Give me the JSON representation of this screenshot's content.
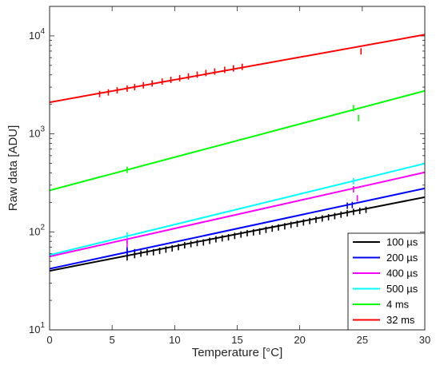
{
  "chart_data": {
    "type": "scatter",
    "title": "",
    "xlabel": "Temperature [°C]",
    "ylabel": "Raw data [ADU]",
    "xlim": [
      0,
      30
    ],
    "ylim": [
      10,
      20000
    ],
    "yscale": "log",
    "grid": false,
    "legend_position": "bottom-right",
    "x_ticks": [
      0,
      5,
      10,
      15,
      20,
      25,
      30
    ],
    "x_tick_labels": [
      "0",
      "5",
      "10",
      "15",
      "20",
      "25",
      "30"
    ],
    "y_ticks": [
      10,
      100,
      1000,
      10000
    ],
    "y_tick_labels": [
      {
        "base": "10",
        "exp": "1"
      },
      {
        "base": "10",
        "exp": "2"
      },
      {
        "base": "10",
        "exp": "3"
      },
      {
        "base": "10",
        "exp": "4"
      }
    ],
    "series": [
      {
        "name": "100 µs",
        "color": "#000000",
        "fit": {
          "x": [
            0,
            30
          ],
          "y": [
            40,
            226
          ]
        },
        "points": [
          [
            6.2,
            55
          ],
          [
            6.2,
            60
          ],
          [
            6.8,
            58
          ],
          [
            6.8,
            62
          ],
          [
            7.3,
            60
          ],
          [
            7.8,
            62
          ],
          [
            8.3,
            62
          ],
          [
            8.8,
            64
          ],
          [
            9.3,
            66
          ],
          [
            9.8,
            68
          ],
          [
            10.3,
            70
          ],
          [
            10.8,
            73
          ],
          [
            11.3,
            75
          ],
          [
            11.8,
            77
          ],
          [
            12.3,
            78
          ],
          [
            12.8,
            81
          ],
          [
            13.3,
            84
          ],
          [
            13.8,
            86
          ],
          [
            14.3,
            88
          ],
          [
            14.8,
            91
          ],
          [
            15.3,
            94
          ],
          [
            15.8,
            97
          ],
          [
            16.3,
            99
          ],
          [
            16.8,
            101
          ],
          [
            17.3,
            105
          ],
          [
            17.8,
            108
          ],
          [
            18.3,
            111
          ],
          [
            18.8,
            114
          ],
          [
            19.3,
            118
          ],
          [
            19.8,
            121
          ],
          [
            20.3,
            125
          ],
          [
            20.8,
            129
          ],
          [
            21.3,
            133
          ],
          [
            21.8,
            137
          ],
          [
            22.3,
            141
          ],
          [
            22.8,
            145
          ],
          [
            23.3,
            150
          ],
          [
            23.8,
            155
          ],
          [
            24.3,
            160
          ],
          [
            24.8,
            164
          ],
          [
            25.3,
            168
          ]
        ]
      },
      {
        "name": "200 µs",
        "color": "#0000ff",
        "fit": {
          "x": [
            0,
            30
          ],
          "y": [
            42,
            278
          ]
        },
        "points": [
          [
            6.2,
            62
          ],
          [
            6.2,
            65
          ],
          [
            23.8,
            185
          ],
          [
            24.2,
            188
          ]
        ]
      },
      {
        "name": "400 µs",
        "color": "#ff00ff",
        "fit": {
          "x": [
            0,
            30
          ],
          "y": [
            56,
            405
          ]
        },
        "points": [
          [
            6.2,
            82
          ],
          [
            6.2,
            75
          ],
          [
            24.3,
            272
          ],
          [
            24.6,
            220
          ]
        ]
      },
      {
        "name": "500 µs",
        "color": "#00ffff",
        "fit": {
          "x": [
            0,
            30
          ],
          "y": [
            58,
            498
          ]
        },
        "points": [
          [
            6.2,
            92
          ],
          [
            24.3,
            328
          ]
        ]
      },
      {
        "name": "4 ms",
        "color": "#00ff00",
        "fit": {
          "x": [
            0,
            30
          ],
          "y": [
            265,
            2750
          ]
        },
        "points": [
          [
            6.2,
            430
          ],
          [
            24.7,
            1450
          ],
          [
            24.3,
            1830
          ]
        ]
      },
      {
        "name": "32 ms",
        "color": "#ff0000",
        "fit": {
          "x": [
            0,
            30
          ],
          "y": [
            2100,
            10300
          ]
        },
        "points": [
          [
            4.0,
            2550
          ],
          [
            4.7,
            2650
          ],
          [
            5.4,
            2780
          ],
          [
            6.2,
            2900
          ],
          [
            6.8,
            3000
          ],
          [
            7.5,
            3130
          ],
          [
            8.2,
            3270
          ],
          [
            9.0,
            3420
          ],
          [
            9.7,
            3560
          ],
          [
            10.4,
            3700
          ],
          [
            11.1,
            3860
          ],
          [
            11.8,
            4020
          ],
          [
            12.5,
            4180
          ],
          [
            13.2,
            4330
          ],
          [
            14.0,
            4500
          ],
          [
            14.7,
            4660
          ],
          [
            15.4,
            4830
          ],
          [
            24.9,
            6950
          ]
        ]
      }
    ]
  }
}
